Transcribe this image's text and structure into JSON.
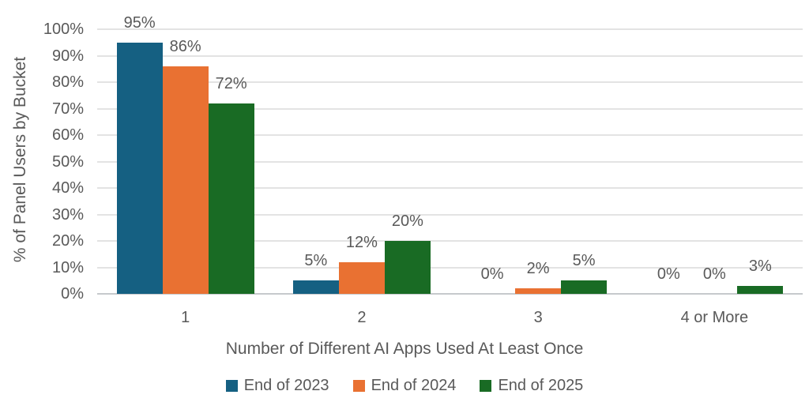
{
  "chart_data": {
    "type": "bar",
    "title": "",
    "categories": [
      "1",
      "2",
      "3",
      "4 or More"
    ],
    "series": [
      {
        "name": "End of 2023",
        "color": "#156082",
        "values": [
          95,
          5,
          0,
          0
        ]
      },
      {
        "name": "End of 2024",
        "color": "#E97132",
        "values": [
          86,
          12,
          2,
          0
        ]
      },
      {
        "name": "End of 2025",
        "color": "#196B24",
        "values": [
          72,
          20,
          5,
          3
        ]
      }
    ],
    "data_labels": [
      [
        "95%",
        "5%",
        "0%",
        "0%"
      ],
      [
        "86%",
        "12%",
        "2%",
        "0%"
      ],
      [
        "72%",
        "20%",
        "5%",
        "3%"
      ]
    ],
    "xlabel": "Number of Different AI Apps Used At Least Once",
    "ylabel": "% of Panel Users by Bucket",
    "ylim": [
      0,
      100
    ],
    "ytick_step": 10,
    "yticks": [
      "0%",
      "10%",
      "20%",
      "30%",
      "40%",
      "50%",
      "60%",
      "70%",
      "80%",
      "90%",
      "100%"
    ],
    "grid": true,
    "legend_position": "bottom"
  }
}
